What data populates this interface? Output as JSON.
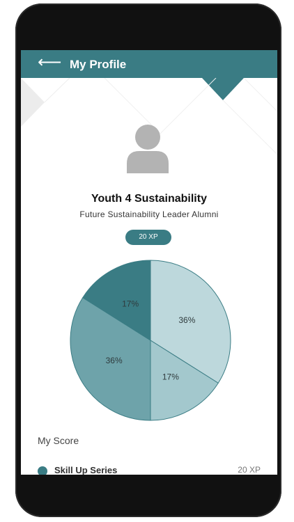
{
  "header": {
    "back_icon": "arrow-left-icon",
    "title": "My Profile"
  },
  "profile": {
    "avatar_icon": "user-avatar-icon",
    "name": "Youth 4 Sustainability",
    "subtitle": "Future Sustainability Leader Alumni",
    "xp_badge": "20 XP"
  },
  "chart_data": {
    "type": "pie",
    "slices": [
      {
        "label": "36%",
        "value": 36,
        "color": "#bdd8dc"
      },
      {
        "label": "17%",
        "value": 17,
        "color": "#a3c8cd"
      },
      {
        "label": "36%",
        "value": 36,
        "color": "#6ea3aa"
      },
      {
        "label": "17%",
        "value": 17,
        "color": "#3a7c84"
      }
    ],
    "start_angle_deg": 0,
    "direction": "clockwise"
  },
  "score": {
    "label": "My Score",
    "items": [
      {
        "name": "Skill Up Series",
        "value": "20 XP"
      }
    ]
  },
  "colors": {
    "accent": "#3a7c84",
    "frame": "#111111"
  }
}
